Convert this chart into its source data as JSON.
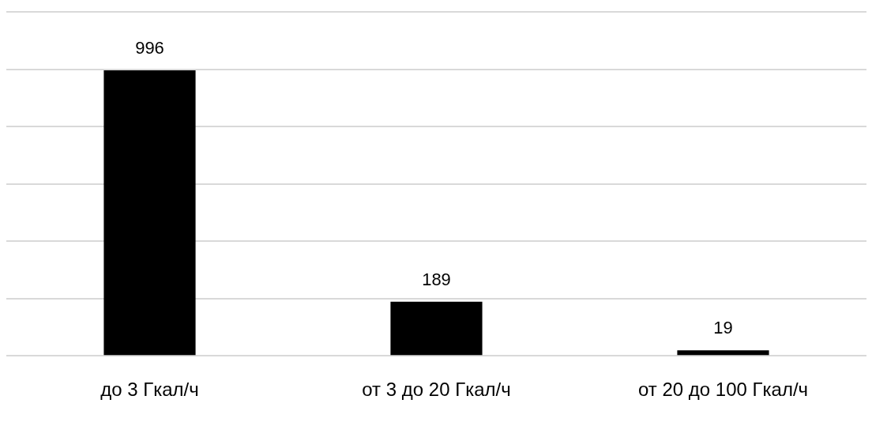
{
  "chart_data": {
    "type": "bar",
    "categories": [
      "до 3 Гкал/ч",
      "от 3 до 20 Гкал/ч",
      "от 20 до 100 Гкал/ч"
    ],
    "values": [
      996,
      189,
      19
    ],
    "color": "#000000",
    "data_labels": true,
    "grid": "y",
    "tick_labels": "x",
    "ylim": [
      0,
      1200
    ],
    "yticks": [
      {
        "value": 0,
        "label": null
      },
      {
        "value": 200,
        "label": null
      },
      {
        "value": 400,
        "label": null
      },
      {
        "value": 600,
        "label": null
      },
      {
        "value": 800,
        "label": null
      },
      {
        "value": 1000,
        "label": null
      },
      {
        "value": 1200,
        "label": null
      }
    ]
  }
}
